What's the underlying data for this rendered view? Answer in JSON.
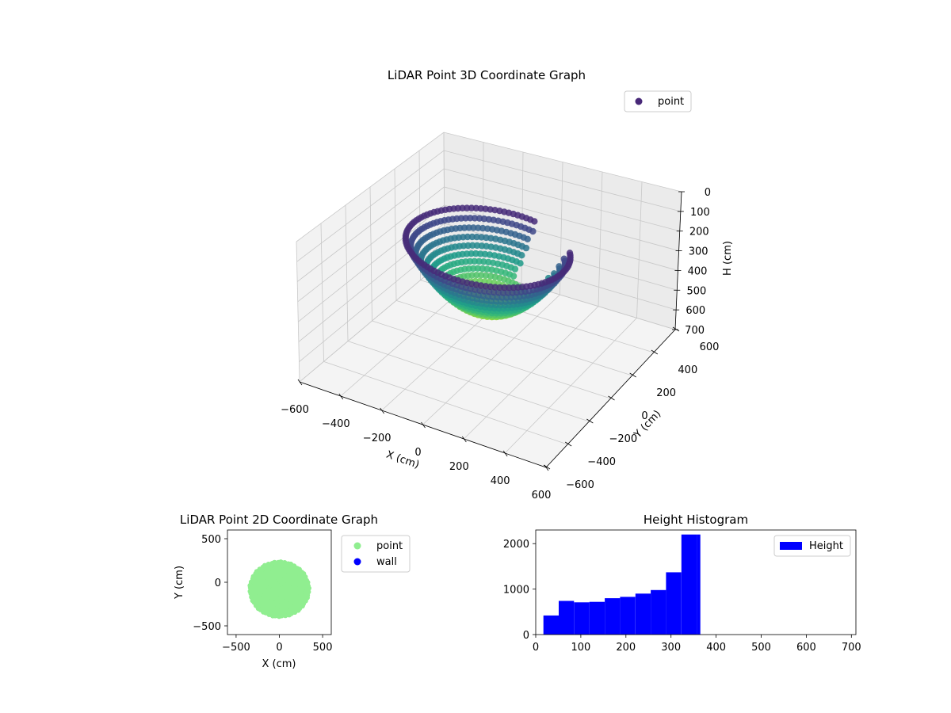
{
  "colors": {
    "point_2d": "#90ee90",
    "wall": "#0000ff",
    "histogram": "#0000ff",
    "legend_point_3d": "#482878"
  },
  "chart_data": [
    {
      "type": "scatter3d",
      "title": "LiDAR Point 3D Coordinate Graph",
      "xlabel": "X (cm)",
      "ylabel": "Y (cm)",
      "zlabel": "H (cm)",
      "xlim": [
        -600,
        600
      ],
      "ylim": [
        -600,
        600
      ],
      "zlim": [
        0,
        700
      ],
      "z_inverted": true,
      "xticks": [
        "−600",
        "−400",
        "−200",
        "0",
        "200",
        "400",
        "600"
      ],
      "yticks": [
        "−600",
        "−400",
        "−200",
        "0",
        "200",
        "400",
        "600"
      ],
      "zticks": [
        "0",
        "100",
        "200",
        "300",
        "400",
        "500",
        "600",
        "700"
      ],
      "colormap": "viridis",
      "legend": {
        "position": "upper-right",
        "entries": [
          "point"
        ]
      },
      "shape": {
        "center": [
          0,
          -80
        ],
        "rx": 360,
        "ry": 300,
        "depth_range": [
          20,
          365
        ],
        "gap_start_deg": 35,
        "gap_end_deg": 80
      }
    },
    {
      "type": "scatter",
      "title": "LiDAR Point 2D Coordinate Graph",
      "xlabel": "X (cm)",
      "ylabel": "Y (cm)",
      "xlim": [
        -600,
        600
      ],
      "ylim": [
        -600,
        600
      ],
      "xticks": [
        "−500",
        "0",
        "500"
      ],
      "yticks": [
        "−500",
        "0",
        "500"
      ],
      "legend": {
        "position": "outside-right",
        "entries": [
          "point",
          "wall"
        ]
      },
      "shape": {
        "center": [
          0,
          -80
        ],
        "rx": 360,
        "ry": 300,
        "top_notch_x": 40
      }
    },
    {
      "type": "bar",
      "title": "Height Histogram",
      "xlabel": "",
      "ylabel": "",
      "xlim": [
        0,
        710
      ],
      "ylim": [
        0,
        2300
      ],
      "xticks": [
        "0",
        "100",
        "200",
        "300",
        "400",
        "500",
        "600",
        "700"
      ],
      "yticks": [
        "0",
        "1000",
        "2000"
      ],
      "bin_edges": [
        17,
        51,
        85,
        119,
        153,
        187,
        221,
        255,
        289,
        323,
        357,
        365
      ],
      "values": [
        420,
        740,
        710,
        720,
        800,
        830,
        900,
        980,
        1370,
        2200,
        2200
      ],
      "legend": {
        "position": "upper-right",
        "entries": [
          "Height"
        ]
      }
    }
  ]
}
